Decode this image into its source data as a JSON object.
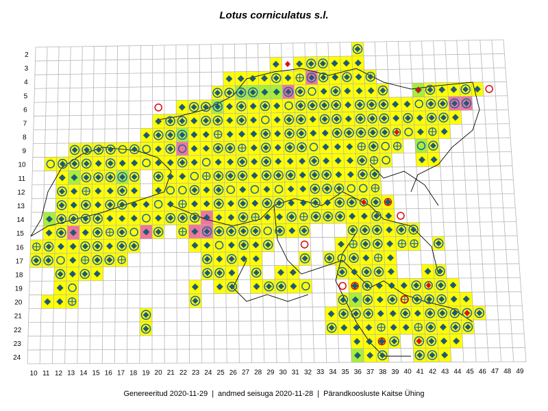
{
  "title": "Lotus corniculatus s.l.",
  "footer": {
    "generated": "Genereeritud 2020-11-29",
    "data_state": "andmed seisuga 2020-11-28",
    "organization": "Pärandkoosluste Kaitse Ühing",
    "separator": "|"
  },
  "colors": {
    "cell_fill": "#ffff00",
    "cell_fill_green": "#a8ee3a",
    "cell_fill_pink": "#ee7799",
    "cell_fill_darkred": "#c04040",
    "grid_line": "#b4b4b4",
    "border_line": "#000000",
    "diamond": "#1e5a78",
    "circle": "#2266aa",
    "diamond_red": "#dd1111",
    "diamond_brown": "#8b4513",
    "circle_red": "#dd1111",
    "diamond_green": "#22aa44"
  },
  "axes": {
    "x_labels": [
      "10",
      "11",
      "12",
      "13",
      "14",
      "15",
      "16",
      "17",
      "18",
      "19",
      "20",
      "21",
      "22",
      "23",
      "24",
      "25",
      "26",
      "27",
      "28",
      "29",
      "30",
      "31",
      "32",
      "33",
      "34",
      "35",
      "36",
      "37",
      "38",
      "39",
      "40",
      "41",
      "42",
      "43",
      "44",
      "45",
      "46",
      "47",
      "48",
      "49"
    ],
    "y_labels": [
      "2",
      "3",
      "4",
      "5",
      "6",
      "7",
      "8",
      "9",
      "10",
      "11",
      "12",
      "13",
      "14",
      "15",
      "16",
      "17",
      "18",
      "19",
      "20",
      "21",
      "22",
      "23",
      "24"
    ]
  },
  "legend_icons": [
    "filled-diamond",
    "diamond-in-circle",
    "open-circle",
    "circle-with-cross",
    "red-diamond",
    "brown-diamond",
    "red-circle"
  ],
  "occupied_cells": [
    {
      "row": "2",
      "cols": [
        37
      ]
    },
    {
      "row": "3",
      "cols": [
        30,
        32,
        33,
        34,
        35,
        36,
        37
      ]
    },
    {
      "row": "4",
      "cols": [
        26,
        27,
        28,
        29,
        30,
        31,
        32,
        33,
        34,
        35,
        36,
        37,
        38
      ]
    },
    {
      "row": "5",
      "cols": [
        25,
        26,
        27,
        28,
        29,
        30,
        31,
        32,
        33,
        34,
        35,
        36,
        37,
        38,
        39,
        42,
        43,
        44,
        45,
        46,
        47
      ]
    },
    {
      "row": "6",
      "cols": [
        22,
        23,
        24,
        25,
        26,
        27,
        28,
        29,
        30,
        31,
        32,
        33,
        34,
        35,
        36,
        37,
        38,
        39,
        40,
        41,
        42,
        43,
        44,
        45,
        46
      ]
    },
    {
      "row": "7",
      "cols": [
        20,
        21,
        22,
        23,
        24,
        25,
        26,
        27,
        28,
        29,
        30,
        31,
        32,
        33,
        34,
        35,
        36,
        37,
        38,
        39,
        40,
        41,
        42,
        43,
        44,
        45
      ]
    },
    {
      "row": "8",
      "cols": [
        19,
        20,
        21,
        22,
        23,
        24,
        25,
        26,
        27,
        28,
        29,
        30,
        31,
        32,
        33,
        34,
        35,
        36,
        37,
        38,
        39,
        40,
        41,
        42,
        43,
        44
      ]
    },
    {
      "row": "9",
      "cols": [
        13,
        14,
        15,
        16,
        17,
        18,
        19,
        20,
        21,
        22,
        23,
        24,
        25,
        26,
        27,
        28,
        29,
        30,
        31,
        32,
        33,
        34,
        35,
        36,
        37,
        38,
        39,
        40,
        42,
        43
      ]
    },
    {
      "row": "10",
      "cols": [
        11,
        12,
        13,
        14,
        15,
        16,
        17,
        18,
        19,
        20,
        21,
        22,
        23,
        24,
        25,
        26,
        27,
        28,
        29,
        30,
        31,
        32,
        33,
        34,
        35,
        36,
        37,
        38,
        39,
        42,
        43
      ]
    },
    {
      "row": "11",
      "cols": [
        12,
        13,
        14,
        15,
        16,
        17,
        18,
        20,
        21,
        22,
        23,
        24,
        25,
        26,
        27,
        28,
        29,
        30,
        31,
        32,
        33,
        34,
        35,
        36,
        37,
        38
      ]
    },
    {
      "row": "12",
      "cols": [
        12,
        13,
        14,
        15,
        16,
        17,
        18,
        20,
        21,
        22,
        23,
        24,
        25,
        26,
        27,
        28,
        29,
        30,
        31,
        32,
        33,
        34,
        35,
        36,
        37,
        38
      ]
    },
    {
      "row": "13",
      "cols": [
        12,
        13,
        14,
        15,
        16,
        17,
        18,
        19,
        20,
        21,
        22,
        23,
        24,
        25,
        26,
        27,
        28,
        29,
        30,
        31,
        32,
        33,
        34,
        35,
        36,
        37,
        38,
        39
      ]
    },
    {
      "row": "14",
      "cols": [
        11,
        12,
        13,
        14,
        15,
        16,
        17,
        18,
        19,
        20,
        21,
        22,
        23,
        24,
        25,
        26,
        27,
        28,
        29,
        30,
        31,
        32,
        33,
        34,
        35,
        36,
        37,
        38,
        39
      ]
    },
    {
      "row": "15",
      "cols": [
        11,
        12,
        13,
        14,
        15,
        16,
        17,
        18,
        19,
        20,
        22,
        23,
        24,
        25,
        26,
        27,
        28,
        29,
        30,
        31,
        32,
        36,
        37,
        38,
        39,
        40,
        41
      ]
    },
    {
      "row": "16",
      "cols": [
        10,
        11,
        12,
        13,
        14,
        15,
        16,
        17,
        18,
        23,
        24,
        25,
        26,
        27,
        28,
        29,
        35,
        36,
        37,
        38,
        39,
        40,
        41,
        43
      ]
    },
    {
      "row": "17",
      "cols": [
        10,
        11,
        12,
        13,
        14,
        15,
        16,
        17,
        24,
        25,
        26,
        27,
        28,
        32,
        34,
        35,
        36,
        37,
        38,
        39
      ]
    },
    {
      "row": "18",
      "cols": [
        12,
        13,
        14,
        15,
        24,
        25,
        26,
        28,
        30,
        31,
        35,
        36,
        37,
        38,
        39,
        42,
        43
      ]
    },
    {
      "row": "19",
      "cols": [
        12,
        13,
        23,
        25,
        26,
        28,
        29,
        30,
        31,
        32,
        36,
        37,
        38,
        39,
        40,
        41,
        42,
        43,
        44
      ]
    },
    {
      "row": "20",
      "cols": [
        11,
        12,
        13,
        23,
        35,
        36,
        37,
        38,
        39,
        40,
        41,
        42,
        43,
        44,
        45
      ]
    },
    {
      "row": "21",
      "cols": [
        19,
        34,
        35,
        36,
        37,
        38,
        39,
        40,
        41,
        42,
        43,
        44,
        45,
        46
      ]
    },
    {
      "row": "22",
      "cols": [
        19,
        34,
        35,
        36,
        37,
        38,
        39,
        40,
        41,
        42,
        43,
        44,
        45
      ]
    },
    {
      "row": "23",
      "cols": [
        36,
        37,
        38,
        39,
        41,
        42,
        43,
        44
      ]
    },
    {
      "row": "24",
      "cols": [
        36,
        37,
        38,
        41,
        42,
        43
      ]
    }
  ],
  "special_cells": [
    {
      "row": "18",
      "col": 29,
      "fill": "darkred"
    },
    {
      "row": "9",
      "col": 22,
      "fill": "pink"
    },
    {
      "row": "5",
      "col": 31,
      "fill": "pink"
    },
    {
      "row": "4",
      "col": 33,
      "fill": "pink"
    },
    {
      "row": "15",
      "col": 13,
      "fill": "pink"
    },
    {
      "row": "15",
      "col": 19,
      "fill": "pink"
    },
    {
      "row": "15",
      "col": 23,
      "fill": "pink"
    },
    {
      "row": "15",
      "col": 24,
      "fill": "pink"
    },
    {
      "row": "14",
      "col": 24,
      "fill": "pink"
    },
    {
      "row": "6",
      "col": 45,
      "fill": "pink"
    },
    {
      "row": "6",
      "col": 46,
      "fill": "pink"
    },
    {
      "row": "5",
      "col": 27,
      "fill": "green"
    },
    {
      "row": "5",
      "col": 28,
      "fill": "green"
    },
    {
      "row": "5",
      "col": 29,
      "fill": "green"
    },
    {
      "row": "5",
      "col": 30,
      "fill": "green"
    },
    {
      "row": "6",
      "col": 25,
      "fill": "green"
    },
    {
      "row": "8",
      "col": 22,
      "fill": "green"
    },
    {
      "row": "11",
      "col": 13,
      "fill": "green"
    },
    {
      "row": "11",
      "col": 17,
      "fill": "green"
    },
    {
      "row": "14",
      "col": 11,
      "fill": "green"
    },
    {
      "row": "5",
      "col": 42,
      "fill": "green"
    },
    {
      "row": "9",
      "col": 42,
      "fill": "green"
    },
    {
      "row": "20",
      "col": 36,
      "fill": "green"
    },
    {
      "row": "24",
      "col": 36,
      "fill": "green"
    }
  ],
  "extra_markers": [
    {
      "row": "6",
      "col": 20,
      "type": "red-circle"
    },
    {
      "row": "3",
      "col": 31,
      "type": "red-diamond"
    },
    {
      "row": "5",
      "col": 42,
      "type": "red-diamond"
    },
    {
      "row": "8",
      "col": 40,
      "type": "red-diamond"
    },
    {
      "row": "13",
      "col": 37,
      "type": "red-diamond"
    },
    {
      "row": "13",
      "col": 39,
      "type": "red-circle"
    },
    {
      "row": "14",
      "col": 40,
      "type": "red-circle"
    },
    {
      "row": "16",
      "col": 32,
      "type": "red-circle"
    },
    {
      "row": "19",
      "col": 35,
      "type": "red-circle"
    },
    {
      "row": "19",
      "col": 36,
      "type": "red-circle"
    },
    {
      "row": "20",
      "col": 40,
      "type": "red-circle"
    },
    {
      "row": "19",
      "col": 42,
      "type": "red-diamond"
    },
    {
      "row": "23",
      "col": 41,
      "type": "red-diamond"
    },
    {
      "row": "23",
      "col": 38,
      "type": "red-circle"
    },
    {
      "row": "21",
      "col": 45,
      "type": "red-diamond"
    },
    {
      "row": "5",
      "col": 48,
      "type": "red-circle"
    }
  ]
}
